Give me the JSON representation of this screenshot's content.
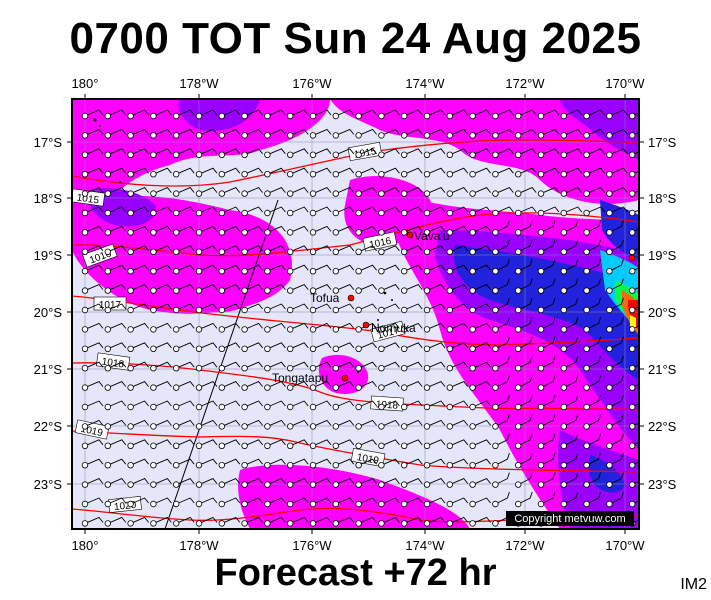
{
  "title": "0700 TOT Sun 24 Aug 2025",
  "footer": "Forecast +72 hr",
  "tag": "IM2",
  "copyright": "Copyright metvuw.com",
  "lon_labels": [
    "180°",
    "178°W",
    "176°W",
    "174°W",
    "172°W",
    "170°W"
  ],
  "lat_labels": [
    "17°S",
    "18°S",
    "19°S",
    "20°S",
    "21°S",
    "22°S",
    "23°S"
  ],
  "places": [
    {
      "name": "Vava'u"
    },
    {
      "name": "Tofua"
    },
    {
      "name": "Nomuka"
    },
    {
      "name": "Tongatapu"
    }
  ],
  "isobars": [
    "1015",
    "1015",
    "1016",
    "1016",
    "1017",
    "1017",
    "1018",
    "1018",
    "1019",
    "1019",
    "1020"
  ],
  "colors": {
    "background": "#e6e6fa",
    "magenta": "#ff00ff",
    "purple": "#9900ff",
    "blue": "#2222dd",
    "cyan": "#00ffff",
    "green": "#00ff44",
    "red": "#ff0000",
    "isobar": "#ff0000"
  }
}
